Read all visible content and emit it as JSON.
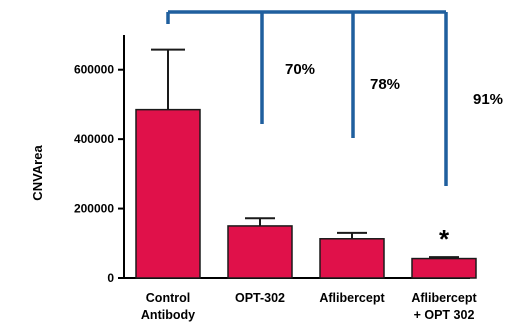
{
  "chart_data": {
    "type": "bar",
    "ylabel": "CNVArea",
    "ylim": [
      0,
      700000
    ],
    "yticks": [
      0,
      200000,
      400000,
      600000
    ],
    "categories": [
      [
        "Control",
        "Antibody"
      ],
      [
        "OPT-302"
      ],
      [
        "Aflibercept"
      ],
      [
        "Aflibercept",
        "+ OPT 302"
      ]
    ],
    "values": [
      485000,
      150000,
      113000,
      56000
    ],
    "error_upper": [
      658000,
      172000,
      130000,
      60000
    ],
    "bar_color": "#e0114a",
    "bracket_color": "#1f5f9e",
    "annotations": {
      "percentages": [
        "70%",
        "78%",
        "91%"
      ],
      "significance": "*"
    }
  }
}
